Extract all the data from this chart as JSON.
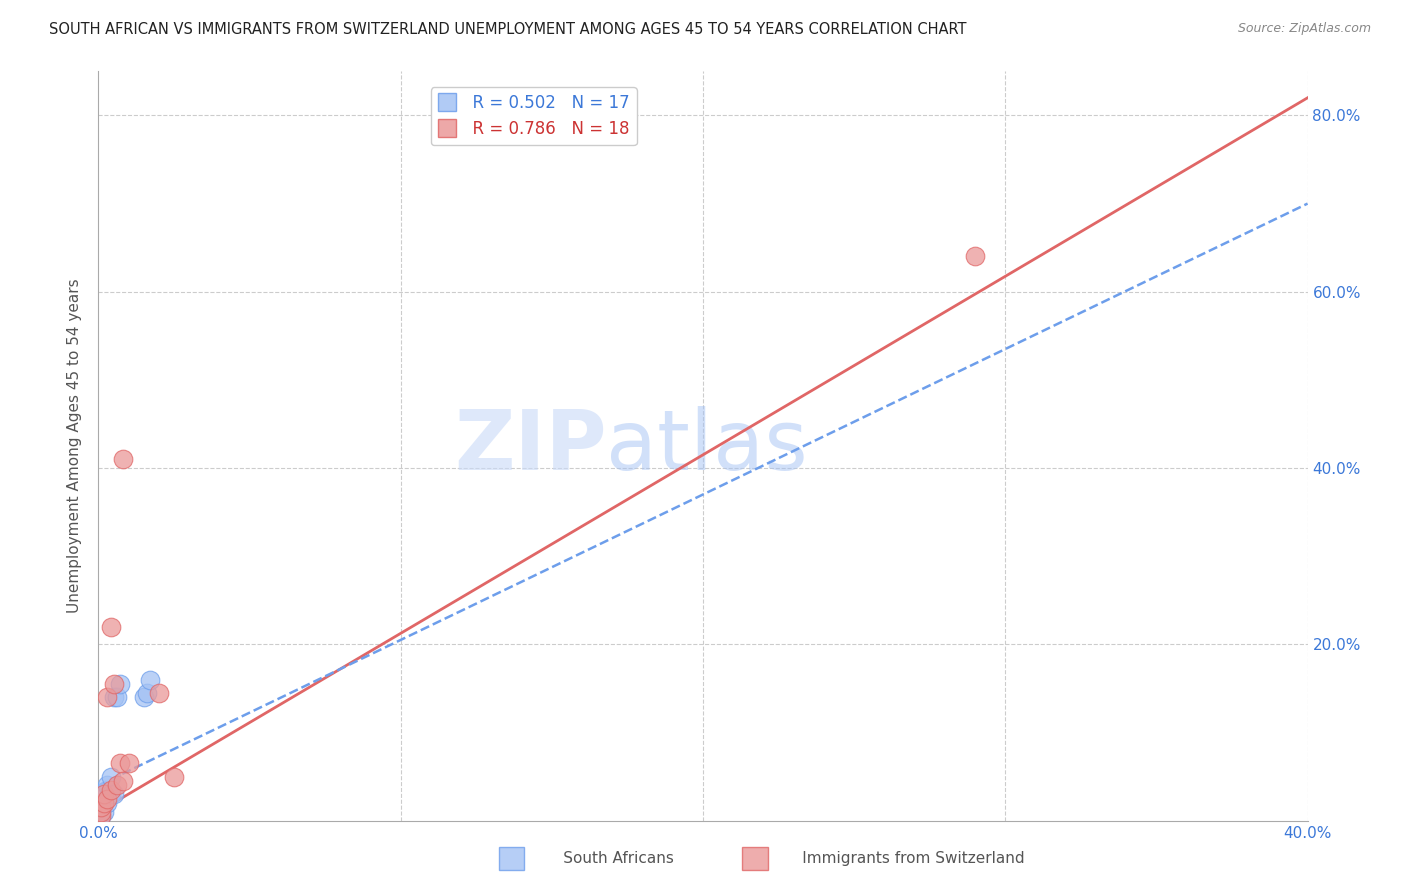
{
  "title": "SOUTH AFRICAN VS IMMIGRANTS FROM SWITZERLAND UNEMPLOYMENT AMONG AGES 45 TO 54 YEARS CORRELATION CHART",
  "source": "Source: ZipAtlas.com",
  "ylabel": "Unemployment Among Ages 45 to 54 years",
  "xlim": [
    0.0,
    0.4
  ],
  "ylim": [
    0.0,
    0.85
  ],
  "blue_color": "#a4c2f4",
  "blue_edge_color": "#6d9eeb",
  "pink_color": "#ea9999",
  "pink_edge_color": "#e06666",
  "blue_line_color": "#6d9eeb",
  "pink_line_color": "#e06666",
  "legend_blue_R": "R = 0.502",
  "legend_blue_N": "N = 17",
  "legend_pink_R": "R = 0.786",
  "legend_pink_N": "N = 18",
  "watermark_zip": "ZIP",
  "watermark_atlas": "atlas",
  "south_african_x": [
    0.001,
    0.001,
    0.001,
    0.002,
    0.002,
    0.002,
    0.003,
    0.003,
    0.004,
    0.004,
    0.005,
    0.005,
    0.006,
    0.007,
    0.015,
    0.016,
    0.017
  ],
  "south_african_y": [
    0.005,
    0.01,
    0.015,
    0.01,
    0.02,
    0.03,
    0.02,
    0.04,
    0.03,
    0.05,
    0.03,
    0.14,
    0.14,
    0.155,
    0.14,
    0.145,
    0.16
  ],
  "immigrants_x": [
    0.001,
    0.001,
    0.001,
    0.002,
    0.002,
    0.003,
    0.003,
    0.004,
    0.004,
    0.005,
    0.006,
    0.007,
    0.008,
    0.008,
    0.01,
    0.02,
    0.025,
    0.29
  ],
  "immigrants_y": [
    0.005,
    0.01,
    0.015,
    0.02,
    0.03,
    0.025,
    0.14,
    0.035,
    0.22,
    0.155,
    0.04,
    0.065,
    0.045,
    0.41,
    0.065,
    0.145,
    0.05,
    0.64
  ],
  "pink_line_x0": 0.0,
  "pink_line_y0": 0.01,
  "pink_line_x1": 0.4,
  "pink_line_y1": 0.82,
  "blue_line_x0": 0.0,
  "blue_line_y0": 0.04,
  "blue_line_x1": 0.4,
  "blue_line_y1": 0.7
}
